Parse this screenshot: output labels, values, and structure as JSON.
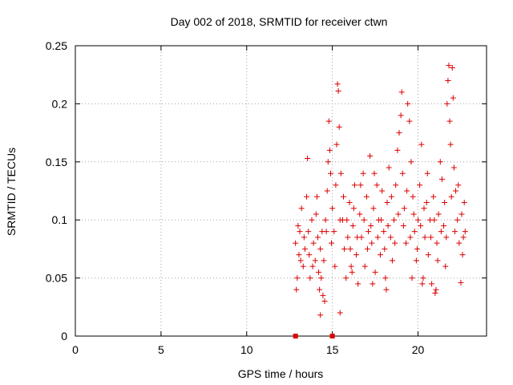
{
  "chart_data": {
    "type": "scatter",
    "title": "Day 002 of 2018, SRMTID for receiver ctwn",
    "xlabel": "GPS time / hours",
    "ylabel": "SRMTID / TECUs",
    "xlim": [
      0,
      24
    ],
    "ylim": [
      0,
      0.25
    ],
    "x_ticks": [
      0,
      5,
      10,
      15,
      20
    ],
    "y_ticks": [
      0,
      0.05,
      0.1,
      0.15,
      0.2,
      0.25
    ],
    "x_tick_labels": [
      "0",
      "5",
      "10",
      "15",
      "20"
    ],
    "y_tick_labels": [
      "0",
      "0.05",
      "0.1",
      "0.15",
      "0.2",
      "0.25"
    ],
    "grid": true,
    "marker": "+",
    "color": "#dd0000",
    "series": [
      {
        "name": "SRMTID",
        "points": [
          [
            12.85,
            0.08
          ],
          [
            12.95,
            0.05
          ],
          [
            13.05,
            0.07
          ],
          [
            13.1,
            0.09
          ],
          [
            13.2,
            0.11
          ],
          [
            13.3,
            0.06
          ],
          [
            13.4,
            0.075
          ],
          [
            13.5,
            0.12
          ],
          [
            13.55,
            0.153
          ],
          [
            13.6,
            0.09
          ],
          [
            13.7,
            0.05
          ],
          [
            13.8,
            0.1
          ],
          [
            13.9,
            0.08
          ],
          [
            14.0,
            0.065
          ],
          [
            14.05,
            0.105
          ],
          [
            14.1,
            0.12
          ],
          [
            14.2,
            0.055
          ],
          [
            14.25,
            0.04
          ],
          [
            14.3,
            0.075
          ],
          [
            14.4,
            0.09
          ],
          [
            14.45,
            0.035
          ],
          [
            14.5,
            0.065
          ],
          [
            14.55,
            0.03
          ],
          [
            14.6,
            0.1
          ],
          [
            14.7,
            0.125
          ],
          [
            14.75,
            0.15
          ],
          [
            14.8,
            0.185
          ],
          [
            14.85,
            0.16
          ],
          [
            14.9,
            0.14
          ],
          [
            15.0,
            0.11
          ],
          [
            15.1,
            0.09
          ],
          [
            15.2,
            0.13
          ],
          [
            15.25,
            0.165
          ],
          [
            15.3,
            0.217
          ],
          [
            15.35,
            0.211
          ],
          [
            15.4,
            0.18
          ],
          [
            15.5,
            0.14
          ],
          [
            15.6,
            0.1
          ],
          [
            15.7,
            0.075
          ],
          [
            15.8,
            0.05
          ],
          [
            15.9,
            0.085
          ],
          [
            16.0,
            0.115
          ],
          [
            16.1,
            0.06
          ],
          [
            16.2,
            0.095
          ],
          [
            16.3,
            0.13
          ],
          [
            16.4,
            0.07
          ],
          [
            16.5,
            0.045
          ],
          [
            16.6,
            0.105
          ],
          [
            16.7,
            0.085
          ],
          [
            16.8,
            0.14
          ],
          [
            16.9,
            0.06
          ],
          [
            17.0,
            0.12
          ],
          [
            17.1,
            0.09
          ],
          [
            17.2,
            0.155
          ],
          [
            17.3,
            0.08
          ],
          [
            17.4,
            0.11
          ],
          [
            17.5,
            0.055
          ],
          [
            17.6,
            0.13
          ],
          [
            17.7,
            0.1
          ],
          [
            17.8,
            0.07
          ],
          [
            17.9,
            0.125
          ],
          [
            18.0,
            0.09
          ],
          [
            18.1,
            0.05
          ],
          [
            18.2,
            0.115
          ],
          [
            18.3,
            0.145
          ],
          [
            18.4,
            0.085
          ],
          [
            18.5,
            0.065
          ],
          [
            18.6,
            0.1
          ],
          [
            18.7,
            0.13
          ],
          [
            18.8,
            0.16
          ],
          [
            18.9,
            0.175
          ],
          [
            19.0,
            0.19
          ],
          [
            19.05,
            0.21
          ],
          [
            19.1,
            0.14
          ],
          [
            19.2,
            0.11
          ],
          [
            19.3,
            0.08
          ],
          [
            19.4,
            0.2
          ],
          [
            19.5,
            0.185
          ],
          [
            19.6,
            0.15
          ],
          [
            19.7,
            0.12
          ],
          [
            19.8,
            0.09
          ],
          [
            19.9,
            0.065
          ],
          [
            20.0,
            0.1
          ],
          [
            20.1,
            0.13
          ],
          [
            20.2,
            0.165
          ],
          [
            20.3,
            0.05
          ],
          [
            20.4,
            0.085
          ],
          [
            20.5,
            0.115
          ],
          [
            20.6,
            0.07
          ],
          [
            20.7,
            0.1
          ],
          [
            20.8,
            0.045
          ],
          [
            20.9,
            0.12
          ],
          [
            21.0,
            0.037
          ],
          [
            21.1,
            0.08
          ],
          [
            21.2,
            0.105
          ],
          [
            21.3,
            0.15
          ],
          [
            21.4,
            0.135
          ],
          [
            21.5,
            0.095
          ],
          [
            21.6,
            0.06
          ],
          [
            21.7,
            0.2
          ],
          [
            21.75,
            0.22
          ],
          [
            21.8,
            0.233
          ],
          [
            21.85,
            0.185
          ],
          [
            21.9,
            0.165
          ],
          [
            22.0,
            0.231
          ],
          [
            22.05,
            0.205
          ],
          [
            22.1,
            0.145
          ],
          [
            22.2,
            0.125
          ],
          [
            22.3,
            0.1
          ],
          [
            22.4,
            0.08
          ],
          [
            22.5,
            0.046
          ],
          [
            22.6,
            0.07
          ],
          [
            22.7,
            0.115
          ],
          [
            22.75,
            0.09
          ],
          [
            12.9,
            0.04
          ],
          [
            13.0,
            0.095
          ],
          [
            13.15,
            0.065
          ],
          [
            13.35,
            0.085
          ],
          [
            13.65,
            0.07
          ],
          [
            13.85,
            0.06
          ],
          [
            14.15,
            0.085
          ],
          [
            14.35,
            0.05
          ],
          [
            14.65,
            0.09
          ],
          [
            14.95,
            0.08
          ],
          [
            15.15,
            0.06
          ],
          [
            15.45,
            0.1
          ],
          [
            15.65,
            0.12
          ],
          [
            15.85,
            0.1
          ],
          [
            16.05,
            0.075
          ],
          [
            16.25,
            0.11
          ],
          [
            16.45,
            0.085
          ],
          [
            16.65,
            0.13
          ],
          [
            16.85,
            0.1
          ],
          [
            17.05,
            0.075
          ],
          [
            17.25,
            0.095
          ],
          [
            17.45,
            0.14
          ],
          [
            17.65,
            0.085
          ],
          [
            17.85,
            0.1
          ],
          [
            18.05,
            0.075
          ],
          [
            18.25,
            0.095
          ],
          [
            18.45,
            0.12
          ],
          [
            18.65,
            0.08
          ],
          [
            18.85,
            0.105
          ],
          [
            19.15,
            0.095
          ],
          [
            19.35,
            0.125
          ],
          [
            19.55,
            0.085
          ],
          [
            19.75,
            0.105
          ],
          [
            19.95,
            0.075
          ],
          [
            20.15,
            0.095
          ],
          [
            20.35,
            0.11
          ],
          [
            20.55,
            0.14
          ],
          [
            20.75,
            0.085
          ],
          [
            20.95,
            0.1
          ],
          [
            21.15,
            0.065
          ],
          [
            21.35,
            0.09
          ],
          [
            21.55,
            0.115
          ],
          [
            21.65,
            0.085
          ],
          [
            21.95,
            0.12
          ],
          [
            22.15,
            0.09
          ],
          [
            22.35,
            0.13
          ],
          [
            22.55,
            0.105
          ],
          [
            22.65,
            0.085
          ],
          [
            14.3,
            0.018
          ],
          [
            15.45,
            0.02
          ],
          [
            16.15,
            0.055
          ],
          [
            17.35,
            0.045
          ],
          [
            18.15,
            0.04
          ],
          [
            19.65,
            0.05
          ],
          [
            20.25,
            0.045
          ],
          [
            21.05,
            0.04
          ]
        ]
      }
    ],
    "axis_markers": [
      12.85,
      15.0
    ]
  }
}
